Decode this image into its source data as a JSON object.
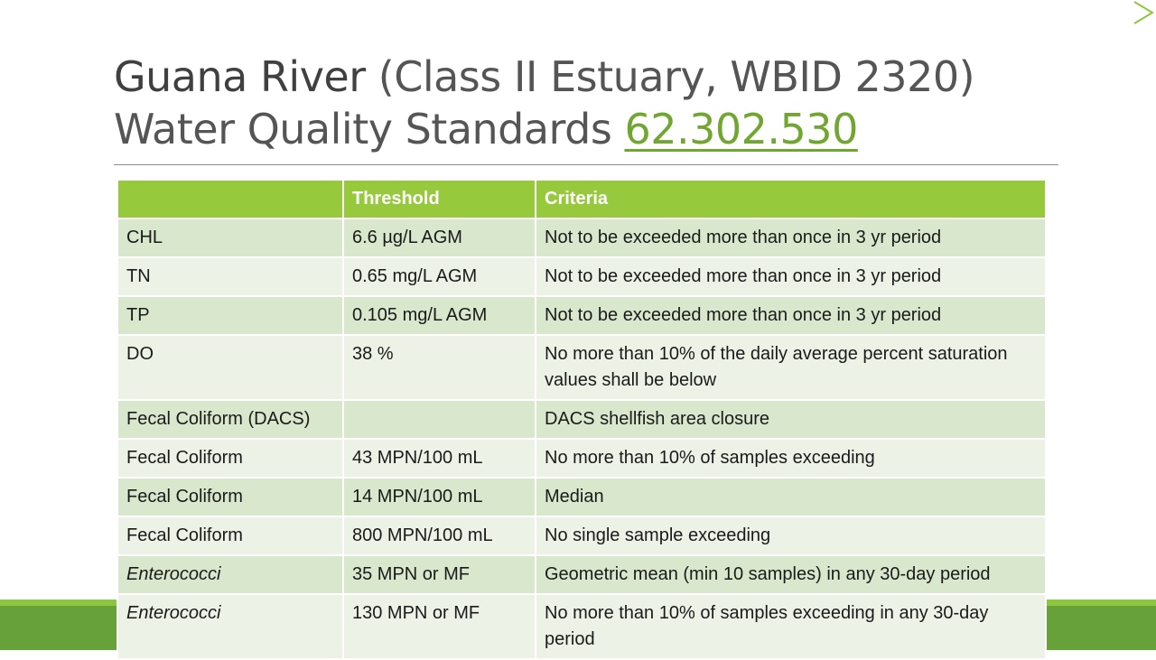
{
  "title": {
    "bold_part": "Guana River",
    "rest_line1": " (Class II Estuary, WBID 2320)",
    "line2_prefix": "Water Quality Standards ",
    "link_text": "62.302.530"
  },
  "table": {
    "headers": [
      "",
      "Threshold",
      "Criteria"
    ],
    "rows": [
      {
        "parameter": "CHL",
        "threshold": "6.6 µg/L AGM",
        "criteria": "Not to be exceeded more than once in 3 yr period"
      },
      {
        "parameter": "TN",
        "threshold": "0.65 mg/L AGM",
        "criteria": "Not to be exceeded more than once in 3 yr period"
      },
      {
        "parameter": "TP",
        "threshold": "0.105 mg/L AGM",
        "criteria": "Not to be exceeded more than once in 3 yr period"
      },
      {
        "parameter": "DO",
        "threshold": "38 %",
        "criteria": "No more than 10% of the daily average percent saturation values shall be below"
      },
      {
        "parameter": "Fecal Coliform (DACS)",
        "threshold": "",
        "criteria": "DACS shellfish area closure"
      },
      {
        "parameter": "Fecal Coliform",
        "threshold": "43 MPN/100 mL",
        "criteria": "No more than 10% of samples exceeding"
      },
      {
        "parameter": "Fecal Coliform",
        "threshold": "14 MPN/100 mL",
        "criteria": "Median"
      },
      {
        "parameter": "Fecal Coliform",
        "threshold": "800 MPN/100 mL",
        "criteria": "No single sample exceeding"
      },
      {
        "parameter": "Enterococci",
        "threshold": "35 MPN or MF",
        "criteria": "Geometric mean (min 10 samples) in any 30-day period"
      },
      {
        "parameter": "Enterococci",
        "threshold": "130 MPN or MF",
        "criteria": "No more than 10% of samples exceeding in any 30-day period"
      }
    ]
  },
  "colors": {
    "accent": "#97c93d",
    "footer": "#66a13a",
    "link": "#71a632",
    "row_dark": "#d9e8cc",
    "row_light": "#ecf3e6"
  }
}
